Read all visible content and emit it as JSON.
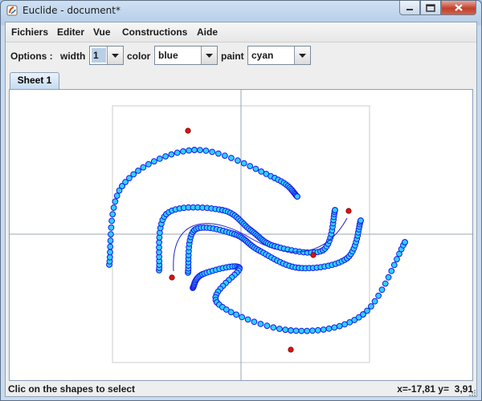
{
  "window": {
    "title": "Euclide - document*"
  },
  "menu": [
    "Fichiers",
    "Editer",
    "Vue",
    "Constructions",
    "Aide"
  ],
  "toolbar": {
    "options_label": "Options :",
    "width_label": "width",
    "width_value": "1",
    "color_label": "color",
    "color_value": "blue",
    "paint_label": "paint",
    "paint_value": "cyan"
  },
  "tabs": [
    "Sheet 1"
  ],
  "status": {
    "message": "Clic on the shapes to select",
    "coords": "x=-17,81 y=  3,91"
  },
  "icons": [
    "app-icon",
    "minimize-icon",
    "maximize-icon",
    "close-icon",
    "dropdown-arrow-icon",
    "resize-grip-icon"
  ],
  "colors": {
    "stroke": "#1a1ae6",
    "fill": "#2fd0ff",
    "point": "#dd1111",
    "axis": "#9aa4ad"
  },
  "drawing": {
    "axes": true,
    "bounding_frame": true,
    "curves": [
      {
        "name": "top-arc",
        "stroke": "blue",
        "fill": "cyan",
        "style": "circles"
      },
      {
        "name": "middle-upper",
        "stroke": "blue",
        "fill": "cyan",
        "style": "circles"
      },
      {
        "name": "middle-lower",
        "stroke": "blue",
        "fill": "cyan",
        "style": "circles"
      },
      {
        "name": "bottom-arc",
        "stroke": "blue",
        "fill": "cyan",
        "style": "circles"
      },
      {
        "name": "center-spline",
        "stroke": "blue",
        "style": "line"
      }
    ],
    "point_count": 5
  }
}
